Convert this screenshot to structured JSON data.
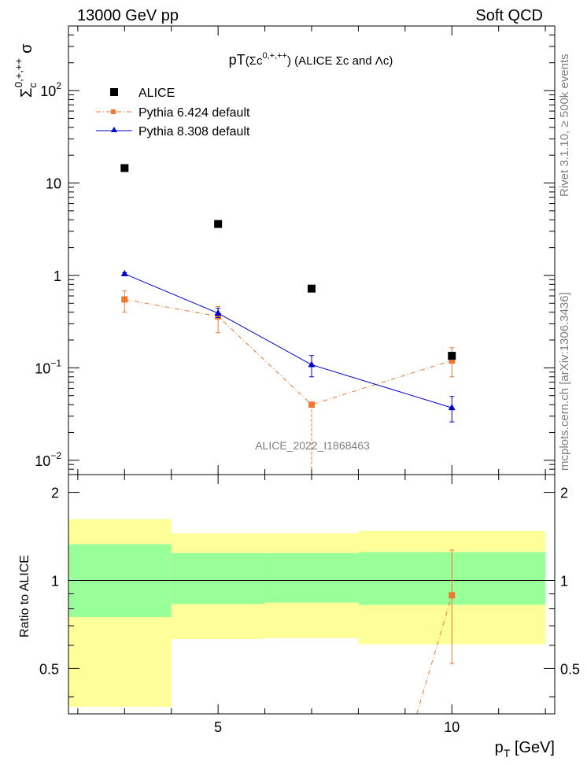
{
  "header": {
    "left": "13000 GeV pp",
    "right": "Soft QCD"
  },
  "side": {
    "rivet": "Rivet 3.1.10, ≥ 500k events",
    "mcplots": "mcplots.cern.ch [arXiv:1306.3436]"
  },
  "chart_data": {
    "type": "scatter",
    "title": "pT(Σc⁰˄⁺˄⁺⁺) (ALICE Σc and Λc)",
    "title_main": "pT",
    "title_sub": "(Σc",
    "title_sup": "0,+,++",
    "title_tail": ") (ALICE Σc and Λc)",
    "ylabel_main": "Σ",
    "ylabel_sub": "c",
    "ylabel_sup": "0,+,++",
    "ylabel_tail": "σ",
    "xlabel_main": "p",
    "xlabel_sub": "T",
    "xlabel_tail": " [GeV]",
    "ratio_ylabel": "Ratio to ALICE",
    "watermark": "ALICE_2022_I1868463",
    "xlim": [
      1.8,
      12.2
    ],
    "ylim_log": [
      0.007,
      500
    ],
    "ratio_ylim": [
      0.35,
      2.3
    ],
    "x_ticks": [
      "5",
      "10"
    ],
    "y_ticks": [
      "10",
      "1",
      "10"
    ],
    "y_tick_labels_main": [
      {
        "base": "10",
        "exp": "2"
      },
      {
        "base": "10",
        "exp": ""
      },
      {
        "base": "1",
        "exp": ""
      },
      {
        "base": "10",
        "exp": "−1"
      },
      {
        "base": "10",
        "exp": "−2"
      }
    ],
    "ratio_tick_labels": [
      "2",
      "1",
      "0.5"
    ],
    "legend": [
      "ALICE",
      "Pythia 6.424 default",
      "Pythia 8.308 default"
    ],
    "series": [
      {
        "name": "ALICE",
        "color": "#000000",
        "marker": "square",
        "x": [
          3,
          5,
          7,
          10
        ],
        "y": [
          14.5,
          3.6,
          0.72,
          0.135
        ]
      },
      {
        "name": "Pythia 6.424 default",
        "color": "#ee7733",
        "marker": "square",
        "line": "dashdot",
        "x": [
          3,
          5,
          7,
          10
        ],
        "y": [
          0.55,
          0.36,
          0.04,
          0.12
        ],
        "err_lo": [
          0.15,
          0.12,
          0.04,
          0.04
        ],
        "err_hi": [
          0.13,
          0.1,
          0.0,
          0.045
        ]
      },
      {
        "name": "Pythia 8.308 default",
        "color": "#0000cc",
        "marker": "triangle",
        "line": "solid",
        "x": [
          3,
          5,
          7,
          10
        ],
        "y": [
          1.04,
          0.39,
          0.108,
          0.037
        ],
        "err_lo": [
          0.03,
          0.04,
          0.028,
          0.011
        ],
        "err_hi": [
          0.03,
          0.05,
          0.028,
          0.012
        ]
      }
    ],
    "ratio": {
      "bands": [
        {
          "x0": 1.8,
          "x1": 4,
          "yellow": [
            0.37,
            1.62
          ],
          "green": [
            0.75,
            1.33
          ]
        },
        {
          "x0": 4,
          "x1": 6,
          "yellow": [
            0.63,
            1.45
          ],
          "green": [
            0.83,
            1.24
          ]
        },
        {
          "x0": 6,
          "x1": 8,
          "yellow": [
            0.635,
            1.45
          ],
          "green": [
            0.84,
            1.24
          ]
        },
        {
          "x0": 8,
          "x1": 12,
          "yellow": [
            0.605,
            1.475
          ],
          "green": [
            0.825,
            1.25
          ]
        }
      ],
      "pythia6": {
        "x": [
          9.25,
          10
        ],
        "y": [
          0.35,
          0.89
        ],
        "err_lo": 0.37,
        "err_hi": 0.38
      }
    },
    "colors": {
      "yellow": "#ffff99",
      "green": "#99ff99"
    }
  }
}
